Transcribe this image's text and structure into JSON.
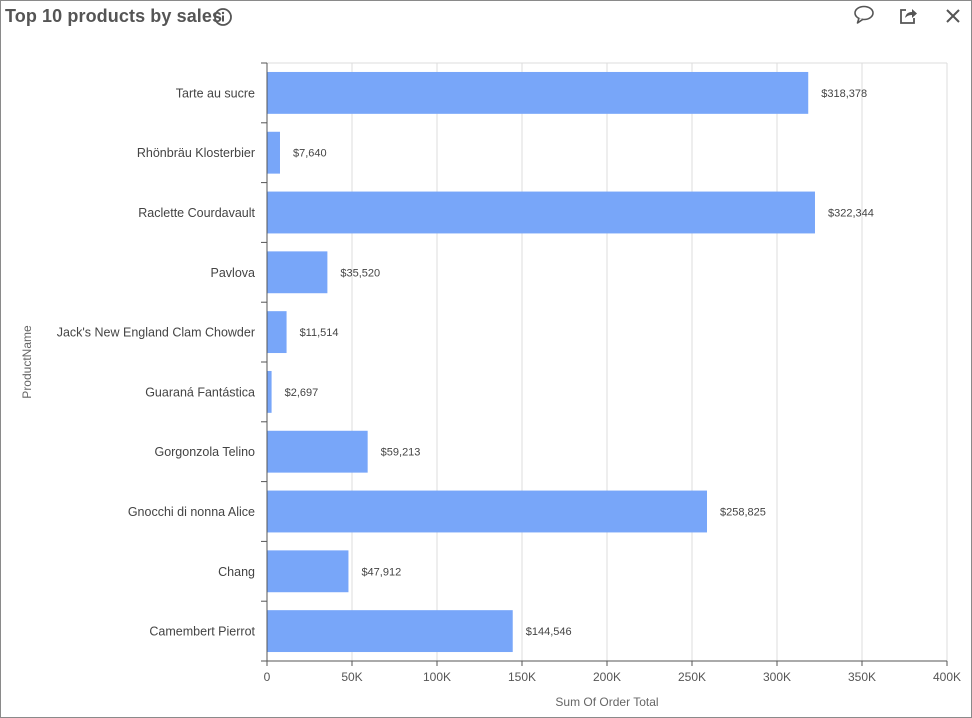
{
  "header": {
    "title": "Top 10 products by sales",
    "info_icon": "info-icon",
    "actions": [
      {
        "name": "comment-button",
        "icon": "comment-icon"
      },
      {
        "name": "share-button",
        "icon": "share-icon"
      },
      {
        "name": "close-button",
        "icon": "close-icon"
      }
    ]
  },
  "colors": {
    "bar": "#78A6F9",
    "grid": "#dcdcdc",
    "axis": "#555555",
    "title": "#555555"
  },
  "chart_data": {
    "type": "bar",
    "orientation": "horizontal",
    "categories": [
      "Tarte au sucre",
      "Rhönbräu Klosterbier",
      "Raclette Courdavault",
      "Pavlova",
      "Jack's New England Clam Chowder",
      "Guaraná Fantástica",
      "Gorgonzola Telino",
      "Gnocchi di nonna Alice",
      "Chang",
      "Camembert Pierrot"
    ],
    "values": [
      318378,
      7640,
      322344,
      35520,
      11514,
      2697,
      59213,
      258825,
      47912,
      144546
    ],
    "value_labels": [
      "$318,378",
      "$7,640",
      "$322,344",
      "$35,520",
      "$11,514",
      "$2,697",
      "$59,213",
      "$258,825",
      "$47,912",
      "$144,546"
    ],
    "title": "Top 10 products by sales",
    "xlabel": "Sum Of Order Total",
    "ylabel": "ProductName",
    "xlim": [
      0,
      400000
    ],
    "xticks": [
      0,
      50000,
      100000,
      150000,
      200000,
      250000,
      300000,
      350000,
      400000
    ],
    "xtick_labels": [
      "0",
      "50K",
      "100K",
      "150K",
      "200K",
      "250K",
      "300K",
      "350K",
      "400K"
    ],
    "grid": true,
    "legend": "none"
  }
}
